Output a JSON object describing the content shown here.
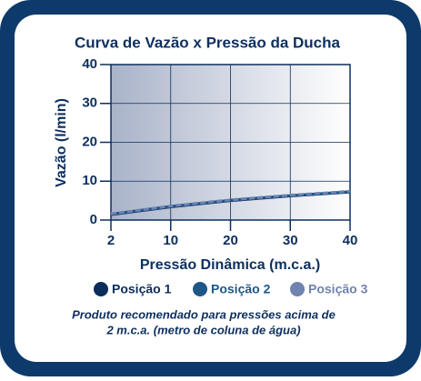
{
  "chart_data": {
    "type": "line",
    "title": "Curva de Vazão x Pressão da Ducha",
    "x_label": "Pressão Dinâmica (m.c.a.)",
    "y_label": "Vazão (l/min)",
    "x": [
      2,
      10,
      20,
      30,
      40
    ],
    "series": [
      {
        "name": "Posição 1",
        "color": "#0b2d5c",
        "values": [
          1.4,
          3.4,
          5.0,
          6.2,
          7.2
        ]
      },
      {
        "name": "Posição 2",
        "color": "#1e5688",
        "values": [
          1.5,
          3.5,
          5.1,
          6.3,
          7.3
        ]
      },
      {
        "name": "Posição 3",
        "color": "#6f82b0",
        "values": [
          1.6,
          3.6,
          5.2,
          6.4,
          7.4
        ]
      }
    ],
    "xlim": [
      2,
      40
    ],
    "xticks": [
      2,
      10,
      20,
      30,
      40
    ],
    "ylim": [
      0,
      40
    ],
    "yticks": [
      0,
      10,
      20,
      30,
      40
    ],
    "grid": true,
    "footnote": [
      "Produto recomendado para pressões  acima de",
      "2 m.c.a. (metro de coluna de água)"
    ]
  }
}
